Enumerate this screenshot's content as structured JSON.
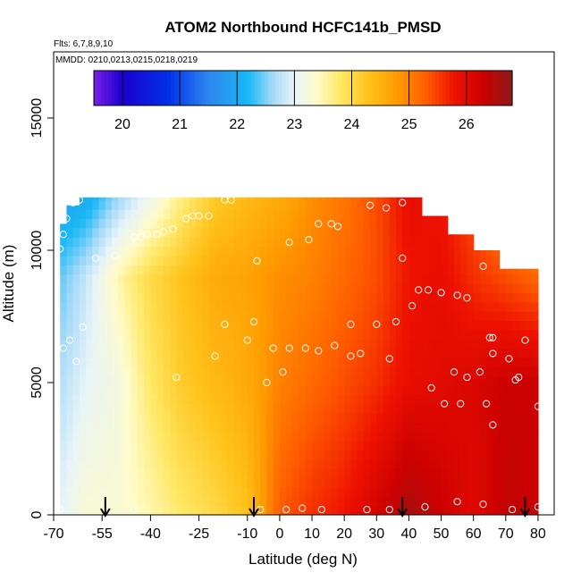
{
  "chart_data": {
    "type": "heatmap",
    "title": "ATOM2 Northbound HCFC141b_PMSD",
    "flights_note": "Flts: 6,7,8,9,10",
    "dates_note": "MMDD: 0210,0213,0215,0218,0219",
    "xlabel": "Latitude (deg N)",
    "ylabel": "Altitude (m)",
    "xlim": [
      -70,
      85
    ],
    "ylim": [
      0,
      17500
    ],
    "x_ticks": [
      -70,
      -55,
      -40,
      -25,
      -10,
      0,
      10,
      20,
      30,
      40,
      50,
      60,
      70,
      80
    ],
    "x_tick_labels": [
      "-70",
      "-55",
      "-40",
      "-25",
      "-10",
      "0",
      "10",
      "20",
      "30",
      "40",
      "50",
      "60",
      "70",
      "80"
    ],
    "y_ticks": [
      0,
      5000,
      10000,
      15000
    ],
    "y_tick_labels": [
      "0",
      "5000",
      "10000",
      "15000"
    ],
    "colorbar": {
      "range": [
        19.5,
        26.8
      ],
      "ticks": [
        20,
        21,
        22,
        23,
        24,
        25,
        26
      ],
      "tick_labels": [
        "20",
        "21",
        "22",
        "23",
        "24",
        "25",
        "26"
      ],
      "stops": [
        {
          "value": 19.5,
          "color": "#7a20e8"
        },
        {
          "value": 20.0,
          "color": "#1a00d0"
        },
        {
          "value": 20.8,
          "color": "#0030e8"
        },
        {
          "value": 21.5,
          "color": "#2e86f0"
        },
        {
          "value": 22.2,
          "color": "#19b8f5"
        },
        {
          "value": 22.6,
          "color": "#9fd8f8"
        },
        {
          "value": 23.0,
          "color": "#e8f4f8"
        },
        {
          "value": 23.4,
          "color": "#fffbc8"
        },
        {
          "value": 23.8,
          "color": "#ffe866"
        },
        {
          "value": 24.3,
          "color": "#ffc21a"
        },
        {
          "value": 24.8,
          "color": "#ff9a00"
        },
        {
          "value": 25.3,
          "color": "#ff5c00"
        },
        {
          "value": 25.8,
          "color": "#ee1200"
        },
        {
          "value": 26.3,
          "color": "#cc0000"
        },
        {
          "value": 26.8,
          "color": "#8b1a1a"
        }
      ]
    },
    "envelope": [
      {
        "lat": -68,
        "top": 11000
      },
      {
        "lat": -65,
        "top": 11700
      },
      {
        "lat": -62,
        "top": 12000
      },
      {
        "lat": 40,
        "top": 12000
      },
      {
        "lat": 44,
        "top": 11300
      },
      {
        "lat": 50,
        "top": 11300
      },
      {
        "lat": 53,
        "top": 10600
      },
      {
        "lat": 59,
        "top": 10600
      },
      {
        "lat": 61,
        "top": 10000
      },
      {
        "lat": 67,
        "top": 10000
      },
      {
        "lat": 69,
        "top": 9300
      },
      {
        "lat": 78,
        "top": 9300
      },
      {
        "lat": 80,
        "top": 8800
      }
    ],
    "field_nodes": [
      {
        "lat": -68,
        "alt": 0,
        "value": 23.0
      },
      {
        "lat": -68,
        "alt": 5000,
        "value": 22.7
      },
      {
        "lat": -68,
        "alt": 9000,
        "value": 22.4
      },
      {
        "lat": -68,
        "alt": 12000,
        "value": 21.9
      },
      {
        "lat": -60,
        "alt": 0,
        "value": 23.3
      },
      {
        "lat": -60,
        "alt": 5000,
        "value": 23.0
      },
      {
        "lat": -60,
        "alt": 9000,
        "value": 22.8
      },
      {
        "lat": -60,
        "alt": 12000,
        "value": 22.0
      },
      {
        "lat": -50,
        "alt": 0,
        "value": 23.3
      },
      {
        "lat": -50,
        "alt": 5000,
        "value": 23.2
      },
      {
        "lat": -50,
        "alt": 9000,
        "value": 23.5
      },
      {
        "lat": -50,
        "alt": 12000,
        "value": 22.6
      },
      {
        "lat": -40,
        "alt": 0,
        "value": 23.5
      },
      {
        "lat": -40,
        "alt": 5000,
        "value": 23.8
      },
      {
        "lat": -40,
        "alt": 9000,
        "value": 24.0
      },
      {
        "lat": -40,
        "alt": 12000,
        "value": 23.1
      },
      {
        "lat": -30,
        "alt": 0,
        "value": 23.8
      },
      {
        "lat": -30,
        "alt": 5000,
        "value": 24.2
      },
      {
        "lat": -30,
        "alt": 9000,
        "value": 24.3
      },
      {
        "lat": -30,
        "alt": 12000,
        "value": 23.7
      },
      {
        "lat": -20,
        "alt": 0,
        "value": 24.0
      },
      {
        "lat": -20,
        "alt": 5000,
        "value": 24.4
      },
      {
        "lat": -20,
        "alt": 9000,
        "value": 24.6
      },
      {
        "lat": -20,
        "alt": 12000,
        "value": 24.2
      },
      {
        "lat": -10,
        "alt": 0,
        "value": 24.3
      },
      {
        "lat": -10,
        "alt": 5000,
        "value": 24.6
      },
      {
        "lat": -10,
        "alt": 9000,
        "value": 24.7
      },
      {
        "lat": -10,
        "alt": 12000,
        "value": 24.4
      },
      {
        "lat": 0,
        "alt": 0,
        "value": 25.3
      },
      {
        "lat": 0,
        "alt": 5000,
        "value": 25.0
      },
      {
        "lat": 0,
        "alt": 9000,
        "value": 24.9
      },
      {
        "lat": 0,
        "alt": 12000,
        "value": 24.6
      },
      {
        "lat": 10,
        "alt": 0,
        "value": 25.6
      },
      {
        "lat": 10,
        "alt": 5000,
        "value": 25.2
      },
      {
        "lat": 10,
        "alt": 9000,
        "value": 25.0
      },
      {
        "lat": 10,
        "alt": 12000,
        "value": 24.9
      },
      {
        "lat": 20,
        "alt": 0,
        "value": 25.8
      },
      {
        "lat": 20,
        "alt": 5000,
        "value": 25.4
      },
      {
        "lat": 20,
        "alt": 9000,
        "value": 25.2
      },
      {
        "lat": 20,
        "alt": 12000,
        "value": 25.1
      },
      {
        "lat": 30,
        "alt": 0,
        "value": 26.2
      },
      {
        "lat": 30,
        "alt": 5000,
        "value": 25.6
      },
      {
        "lat": 30,
        "alt": 9000,
        "value": 25.4
      },
      {
        "lat": 30,
        "alt": 12000,
        "value": 25.4
      },
      {
        "lat": 40,
        "alt": 0,
        "value": 26.6
      },
      {
        "lat": 40,
        "alt": 5000,
        "value": 25.9
      },
      {
        "lat": 40,
        "alt": 9000,
        "value": 25.8
      },
      {
        "lat": 40,
        "alt": 12000,
        "value": 25.9
      },
      {
        "lat": 50,
        "alt": 0,
        "value": 26.3
      },
      {
        "lat": 50,
        "alt": 5000,
        "value": 26.0
      },
      {
        "lat": 50,
        "alt": 9000,
        "value": 25.9
      },
      {
        "lat": 50,
        "alt": 12000,
        "value": 25.8
      },
      {
        "lat": 60,
        "alt": 0,
        "value": 26.0
      },
      {
        "lat": 60,
        "alt": 5000,
        "value": 26.1
      },
      {
        "lat": 60,
        "alt": 9000,
        "value": 25.6
      },
      {
        "lat": 60,
        "alt": 12000,
        "value": 25.4
      },
      {
        "lat": 70,
        "alt": 0,
        "value": 26.4
      },
      {
        "lat": 70,
        "alt": 5000,
        "value": 26.3
      },
      {
        "lat": 70,
        "alt": 9000,
        "value": 25.4
      },
      {
        "lat": 70,
        "alt": 12000,
        "value": 24.8
      },
      {
        "lat": 80,
        "alt": 0,
        "value": 26.3
      },
      {
        "lat": 80,
        "alt": 5000,
        "value": 26.3
      },
      {
        "lat": 80,
        "alt": 9000,
        "value": 25.2
      },
      {
        "lat": 80,
        "alt": 12000,
        "value": 24.6
      }
    ],
    "sample_points": [
      {
        "lat": -68,
        "alt": 10050
      },
      {
        "lat": -67,
        "alt": 10600
      },
      {
        "lat": -66,
        "alt": 11200
      },
      {
        "lat": -64,
        "alt": 11800
      },
      {
        "lat": -62,
        "alt": 11900
      },
      {
        "lat": -67,
        "alt": 6300
      },
      {
        "lat": -65,
        "alt": 6600
      },
      {
        "lat": -63,
        "alt": 5800
      },
      {
        "lat": -61,
        "alt": 7100
      },
      {
        "lat": -57,
        "alt": 9700
      },
      {
        "lat": -51,
        "alt": 9800
      },
      {
        "lat": -45,
        "alt": 10500
      },
      {
        "lat": -43,
        "alt": 10500
      },
      {
        "lat": -41,
        "alt": 10600
      },
      {
        "lat": -38,
        "alt": 10600
      },
      {
        "lat": -36,
        "alt": 10700
      },
      {
        "lat": -33,
        "alt": 10800
      },
      {
        "lat": -29,
        "alt": 11200
      },
      {
        "lat": -27,
        "alt": 11300
      },
      {
        "lat": -25,
        "alt": 11300
      },
      {
        "lat": -22,
        "alt": 11300
      },
      {
        "lat": -17,
        "alt": 11900
      },
      {
        "lat": -15,
        "alt": 11900
      },
      {
        "lat": -32,
        "alt": 5200
      },
      {
        "lat": -20,
        "alt": 6000
      },
      {
        "lat": -17,
        "alt": 7200
      },
      {
        "lat": -8,
        "alt": 7300
      },
      {
        "lat": -10,
        "alt": 6600
      },
      {
        "lat": -7,
        "alt": 9600
      },
      {
        "lat": -4,
        "alt": 5000
      },
      {
        "lat": -2,
        "alt": 6300
      },
      {
        "lat": 1,
        "alt": 5400
      },
      {
        "lat": 3,
        "alt": 10300
      },
      {
        "lat": 3,
        "alt": 6300
      },
      {
        "lat": 9,
        "alt": 10400
      },
      {
        "lat": 12,
        "alt": 11000
      },
      {
        "lat": 16,
        "alt": 11000
      },
      {
        "lat": 18,
        "alt": 10900
      },
      {
        "lat": 8,
        "alt": 6300
      },
      {
        "lat": 12,
        "alt": 6200
      },
      {
        "lat": 17,
        "alt": 6400
      },
      {
        "lat": 22,
        "alt": 7200
      },
      {
        "lat": 25,
        "alt": 6100
      },
      {
        "lat": 28,
        "alt": 11700
      },
      {
        "lat": 33,
        "alt": 11600
      },
      {
        "lat": 38,
        "alt": 11800
      },
      {
        "lat": 30,
        "alt": 7200
      },
      {
        "lat": 36,
        "alt": 7300
      },
      {
        "lat": 34,
        "alt": 5900
      },
      {
        "lat": 22,
        "alt": 6000
      },
      {
        "lat": 38,
        "alt": 9700
      },
      {
        "lat": 41,
        "alt": 7900
      },
      {
        "lat": 43,
        "alt": 8500
      },
      {
        "lat": 46,
        "alt": 8500
      },
      {
        "lat": 50,
        "alt": 8400
      },
      {
        "lat": 55,
        "alt": 8300
      },
      {
        "lat": 58,
        "alt": 8200
      },
      {
        "lat": 63,
        "alt": 9400
      },
      {
        "lat": 72,
        "alt": 9500
      },
      {
        "lat": 54,
        "alt": 5400
      },
      {
        "lat": 58,
        "alt": 5200
      },
      {
        "lat": 62,
        "alt": 5400
      },
      {
        "lat": 47,
        "alt": 4800
      },
      {
        "lat": 51,
        "alt": 4200
      },
      {
        "lat": 56,
        "alt": 4200
      },
      {
        "lat": 64,
        "alt": 4200
      },
      {
        "lat": 65,
        "alt": 6700
      },
      {
        "lat": 66,
        "alt": 6700
      },
      {
        "lat": 66,
        "alt": 6100
      },
      {
        "lat": 71,
        "alt": 5900
      },
      {
        "lat": 73,
        "alt": 5100
      },
      {
        "lat": 74,
        "alt": 5200
      },
      {
        "lat": 76,
        "alt": 6600
      },
      {
        "lat": 80,
        "alt": 4100
      },
      {
        "lat": 66,
        "alt": 3400
      },
      {
        "lat": -68,
        "alt": 200
      },
      {
        "lat": -45,
        "alt": 200
      },
      {
        "lat": -6,
        "alt": 200
      },
      {
        "lat": 2,
        "alt": 200
      },
      {
        "lat": 7,
        "alt": 250
      },
      {
        "lat": 13,
        "alt": 200
      },
      {
        "lat": 27,
        "alt": 200
      },
      {
        "lat": 34,
        "alt": 200
      },
      {
        "lat": 45,
        "alt": 300
      },
      {
        "lat": 55,
        "alt": 500
      },
      {
        "lat": 63,
        "alt": 400
      },
      {
        "lat": 72,
        "alt": 200
      },
      {
        "lat": 80,
        "alt": 300
      }
    ],
    "markers": [
      {
        "lat": -54,
        "label": "down-arrow"
      },
      {
        "lat": -8,
        "label": "down-arrow"
      },
      {
        "lat": 38,
        "label": "down-arrow"
      },
      {
        "lat": 76,
        "label": "down-arrow"
      }
    ],
    "grid": false,
    "legend": "top colorbar"
  }
}
